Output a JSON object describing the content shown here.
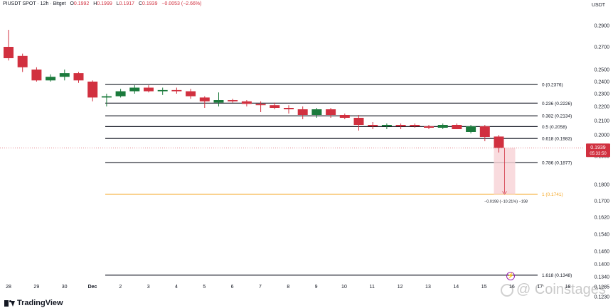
{
  "header": {
    "symbol": "PIUSDT SPOT",
    "interval": "12h",
    "exchange": "Bitget",
    "o_label": "O",
    "o_value": "0.1992",
    "h_label": "H",
    "h_value": "0.1999",
    "l_label": "L",
    "l_value": "0.1917",
    "c_label": "C",
    "c_value": "0.1939",
    "change": "−0.0053 (−2.66%)",
    "currency": "USDT"
  },
  "footer": {
    "logo_text": "TradingView",
    "watermark": "@ Coinstages"
  },
  "colors": {
    "up": "#1b7a3c",
    "down": "#d1303f",
    "fib_line": "#131722",
    "fib_one": "#f5a623",
    "measure_fill": "#f8d2d6",
    "price_tag": "#d1303f",
    "text": "#131722",
    "flash_icon": "#9c27b0"
  },
  "chart_data": {
    "type": "candlestick",
    "y_axis_ticks": [
      "0.2900",
      "0.2700",
      "0.2500",
      "0.2400",
      "0.2300",
      "0.2200",
      "0.2100",
      "0.2000",
      "0.1900",
      "0.1800",
      "0.1700",
      "0.1620",
      "0.1540",
      "0.1460",
      "0.1400",
      "0.1340",
      "0.1285",
      "0.1230"
    ],
    "x_axis_ticks": [
      "28",
      "29",
      "30",
      "Dec",
      "2",
      "3",
      "4",
      "5",
      "6",
      "7",
      "8",
      "9",
      "10",
      "11",
      "12",
      "13",
      "14",
      "15",
      "16",
      "17",
      "18"
    ],
    "candles": [
      {
        "o": 0.27,
        "h": 0.286,
        "l": 0.258,
        "c": 0.26
      },
      {
        "o": 0.262,
        "h": 0.264,
        "l": 0.248,
        "c": 0.252
      },
      {
        "o": 0.25,
        "h": 0.252,
        "l": 0.24,
        "c": 0.241
      },
      {
        "o": 0.241,
        "h": 0.246,
        "l": 0.24,
        "c": 0.244
      },
      {
        "o": 0.244,
        "h": 0.25,
        "l": 0.241,
        "c": 0.247
      },
      {
        "o": 0.247,
        "h": 0.248,
        "l": 0.239,
        "c": 0.241
      },
      {
        "o": 0.24,
        "h": 0.241,
        "l": 0.224,
        "c": 0.227
      },
      {
        "o": 0.227,
        "h": 0.23,
        "l": 0.22,
        "c": 0.228
      },
      {
        "o": 0.228,
        "h": 0.234,
        "l": 0.227,
        "c": 0.232
      },
      {
        "o": 0.232,
        "h": 0.237,
        "l": 0.23,
        "c": 0.235
      },
      {
        "o": 0.235,
        "h": 0.237,
        "l": 0.231,
        "c": 0.232
      },
      {
        "o": 0.232,
        "h": 0.235,
        "l": 0.229,
        "c": 0.233
      },
      {
        "o": 0.233,
        "h": 0.235,
        "l": 0.23,
        "c": 0.232
      },
      {
        "o": 0.232,
        "h": 0.234,
        "l": 0.226,
        "c": 0.228
      },
      {
        "o": 0.227,
        "h": 0.228,
        "l": 0.219,
        "c": 0.224
      },
      {
        "o": 0.223,
        "h": 0.231,
        "l": 0.22,
        "c": 0.225
      },
      {
        "o": 0.225,
        "h": 0.226,
        "l": 0.223,
        "c": 0.224
      },
      {
        "o": 0.224,
        "h": 0.225,
        "l": 0.22,
        "c": 0.222
      },
      {
        "o": 0.222,
        "h": 0.224,
        "l": 0.216,
        "c": 0.221
      },
      {
        "o": 0.221,
        "h": 0.223,
        "l": 0.218,
        "c": 0.219
      },
      {
        "o": 0.219,
        "h": 0.221,
        "l": 0.215,
        "c": 0.218
      },
      {
        "o": 0.218,
        "h": 0.22,
        "l": 0.211,
        "c": 0.214
      },
      {
        "o": 0.214,
        "h": 0.219,
        "l": 0.212,
        "c": 0.218
      },
      {
        "o": 0.218,
        "h": 0.219,
        "l": 0.212,
        "c": 0.214
      },
      {
        "o": 0.214,
        "h": 0.215,
        "l": 0.211,
        "c": 0.212
      },
      {
        "o": 0.212,
        "h": 0.214,
        "l": 0.203,
        "c": 0.207
      },
      {
        "o": 0.207,
        "h": 0.209,
        "l": 0.204,
        "c": 0.206
      },
      {
        "o": 0.206,
        "h": 0.208,
        "l": 0.204,
        "c": 0.207
      },
      {
        "o": 0.207,
        "h": 0.208,
        "l": 0.204,
        "c": 0.206
      },
      {
        "o": 0.207,
        "h": 0.208,
        "l": 0.205,
        "c": 0.206
      },
      {
        "o": 0.206,
        "h": 0.207,
        "l": 0.204,
        "c": 0.205
      },
      {
        "o": 0.205,
        "h": 0.208,
        "l": 0.204,
        "c": 0.207
      },
      {
        "o": 0.207,
        "h": 0.208,
        "l": 0.204,
        "c": 0.204
      },
      {
        "o": 0.202,
        "h": 0.207,
        "l": 0.201,
        "c": 0.206
      },
      {
        "o": 0.206,
        "h": 0.207,
        "l": 0.197,
        "c": 0.199
      },
      {
        "o": 0.1992,
        "h": 0.1999,
        "l": 0.1917,
        "c": 0.1939
      }
    ],
    "fib_levels": [
      {
        "label": "0 (0.2376)",
        "value": 0.2376
      },
      {
        "label": "0.236 (0.2226)",
        "value": 0.2226
      },
      {
        "label": "0.382 (0.2134)",
        "value": 0.2134
      },
      {
        "label": "0.5 (0.2058)",
        "value": 0.2058
      },
      {
        "label": "0.618 (0.1983)",
        "value": 0.1983
      },
      {
        "label": "0.786 (0.1877)",
        "value": 0.1877
      },
      {
        "label": "1 (0.1741)",
        "value": 0.1741
      },
      {
        "label": "1.618 (0.1348)",
        "value": 0.1348
      }
    ],
    "current_price": "0.1939",
    "countdown": "05:33:50",
    "measure": {
      "from": 0.1939,
      "to": 0.1741,
      "label": "−0.0198 (−10.21%) −198"
    }
  }
}
